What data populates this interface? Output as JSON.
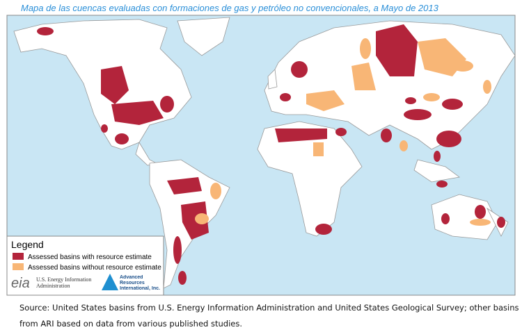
{
  "header": {
    "title": "Mapa de las cuencas evaluadas con formaciones de gas y petróleo no convencionales, a Mayo de 2013"
  },
  "legend": {
    "title": "Legend",
    "items": [
      {
        "label": "Assessed basins with resource estimate",
        "color": "#b3243b"
      },
      {
        "label": "Assessed basins without resource estimate",
        "color": "#f8b676"
      }
    ]
  },
  "logos": {
    "eia": "eia",
    "eia_name": "U.S. Energy Information Administration",
    "ari_name": "Advanced Resources International, Inc."
  },
  "footer": {
    "lines": [
      "Source: United States basins from U.S. Energy Information Administration and United States Geological Survey; other basins",
      "from ARI based on data from various published studies."
    ]
  }
}
